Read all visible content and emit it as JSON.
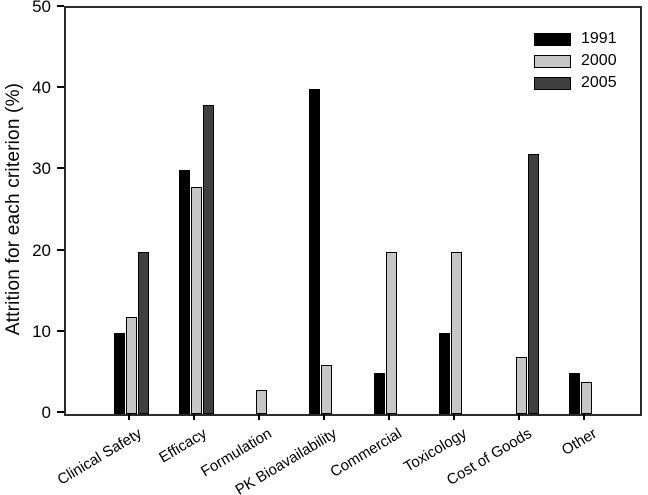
{
  "chart_data": {
    "type": "bar",
    "title": "",
    "ylabel": "Attrition for each criterion (%)",
    "xlabel": "",
    "ylim": [
      0,
      50
    ],
    "yticks": [
      0,
      10,
      20,
      30,
      40,
      50
    ],
    "grid": false,
    "legend_position": "top-right",
    "categories": [
      "Clinical Safety",
      "Efficacy",
      "Formulation",
      "PK Bioavailability",
      "Commercial",
      "Toxicology",
      "Cost of Goods",
      "Other"
    ],
    "series": [
      {
        "name": "1991",
        "color": "#000000",
        "values": [
          10,
          30,
          0,
          40,
          5,
          10,
          0,
          5
        ]
      },
      {
        "name": "2000",
        "color": "#c6c6c6",
        "values": [
          12,
          28,
          3,
          6,
          20,
          20,
          7,
          4
        ]
      },
      {
        "name": "2005",
        "color": "#404040",
        "values": [
          20,
          38,
          0,
          0,
          0,
          0,
          32,
          0
        ]
      }
    ],
    "colors": {
      "axis": "#000000",
      "plot_border": "#2b2b2b",
      "background": "#ffffff"
    }
  }
}
